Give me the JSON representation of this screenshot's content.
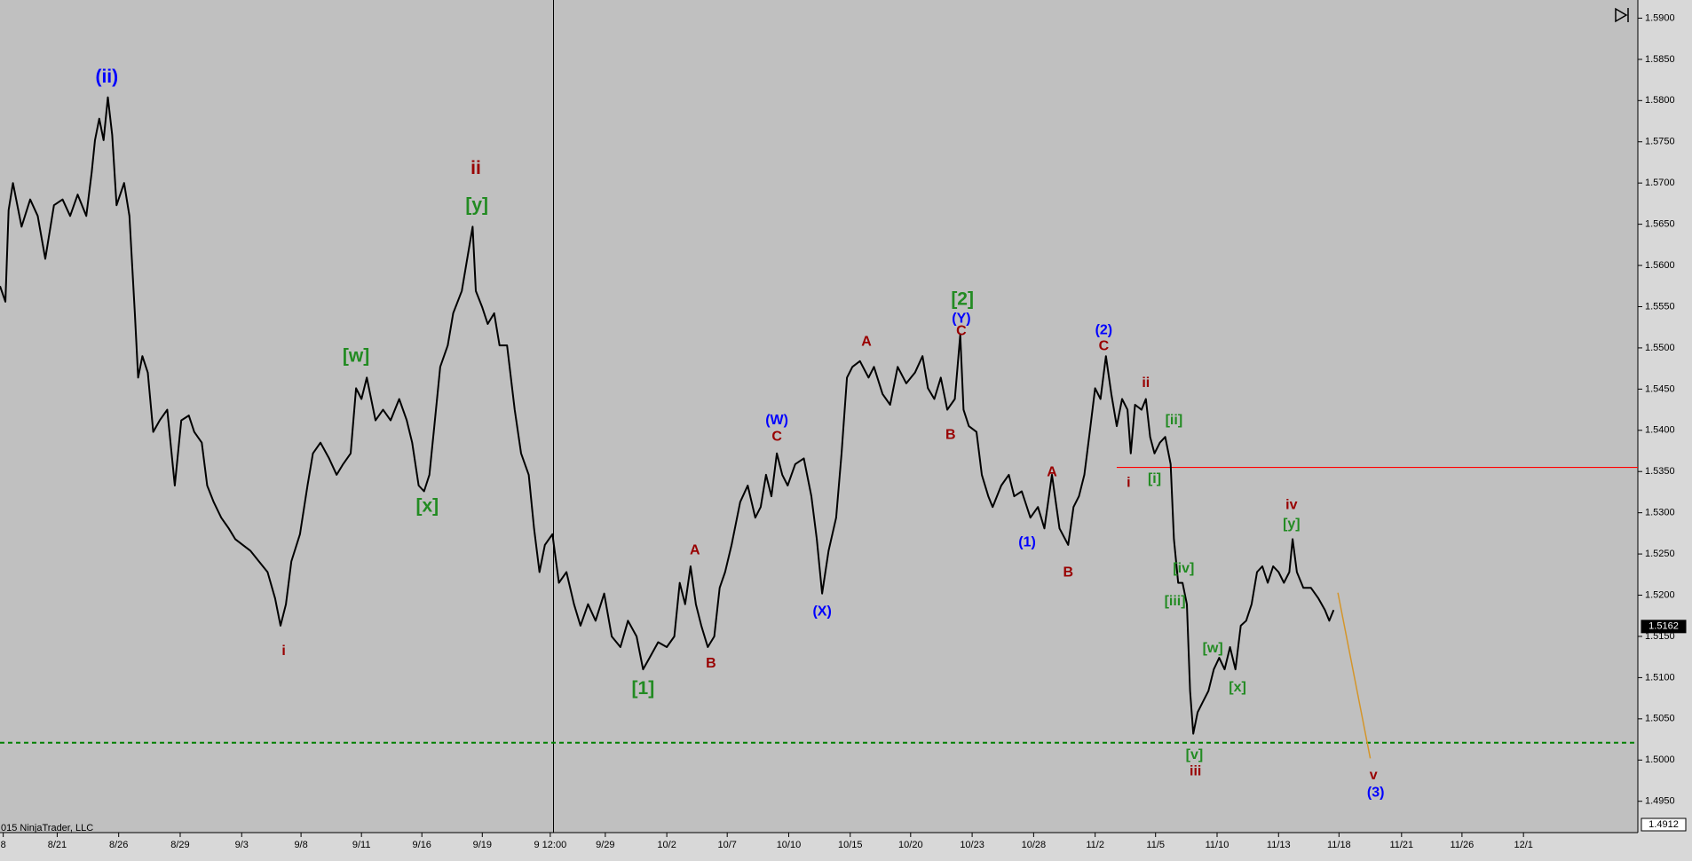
{
  "chart_data": {
    "type": "line",
    "color": "#000000",
    "xlim": [
      0,
      1518
    ],
    "ylim": [
      1.4912,
      1.5922
    ],
    "xticks": [
      {
        "value": 3,
        "label": "8"
      },
      {
        "value": 53,
        "label": "8/21"
      },
      {
        "value": 110,
        "label": "8/26"
      },
      {
        "value": 167,
        "label": "8/29"
      },
      {
        "value": 224,
        "label": "9/3"
      },
      {
        "value": 279,
        "label": "9/8"
      },
      {
        "value": 335,
        "label": "9/11"
      },
      {
        "value": 391,
        "label": "9/16"
      },
      {
        "value": 447,
        "label": "9/19"
      },
      {
        "value": 510,
        "label": "9 12:00"
      },
      {
        "value": 561,
        "label": "9/29"
      },
      {
        "value": 618,
        "label": "10/2"
      },
      {
        "value": 674,
        "label": "10/7"
      },
      {
        "value": 731,
        "label": "10/10"
      },
      {
        "value": 788,
        "label": "10/15"
      },
      {
        "value": 844,
        "label": "10/20"
      },
      {
        "value": 901,
        "label": "10/23"
      },
      {
        "value": 958,
        "label": "10/28"
      },
      {
        "value": 1015,
        "label": "11/2"
      },
      {
        "value": 1071,
        "label": "11/5"
      },
      {
        "value": 1128,
        "label": "11/10"
      },
      {
        "value": 1185,
        "label": "11/13"
      },
      {
        "value": 1241,
        "label": "11/18"
      },
      {
        "value": 1299,
        "label": "11/21"
      },
      {
        "value": 1355,
        "label": "11/26"
      },
      {
        "value": 1412,
        "label": "12/1"
      }
    ],
    "yticks": [
      {
        "value": 1.495,
        "label": "1.4950"
      },
      {
        "value": 1.5,
        "label": "1.5000"
      },
      {
        "value": 1.505,
        "label": "1.5050"
      },
      {
        "value": 1.51,
        "label": "1.5100"
      },
      {
        "value": 1.515,
        "label": "1.5150"
      },
      {
        "value": 1.52,
        "label": "1.5200"
      },
      {
        "value": 1.525,
        "label": "1.5250"
      },
      {
        "value": 1.53,
        "label": "1.5300"
      },
      {
        "value": 1.535,
        "label": "1.5350"
      },
      {
        "value": 1.54,
        "label": "1.5400"
      },
      {
        "value": 1.545,
        "label": "1.5450"
      },
      {
        "value": 1.55,
        "label": "1.5500"
      },
      {
        "value": 1.555,
        "label": "1.5550"
      },
      {
        "value": 1.56,
        "label": "1.5600"
      },
      {
        "value": 1.565,
        "label": "1.5650"
      },
      {
        "value": 1.57,
        "label": "1.5700"
      },
      {
        "value": 1.575,
        "label": "1.5750"
      },
      {
        "value": 1.58,
        "label": "1.5800"
      },
      {
        "value": 1.585,
        "label": "1.5850"
      },
      {
        "value": 1.59,
        "label": "1.5900"
      }
    ],
    "x": [
      0,
      5,
      8,
      12,
      20,
      28,
      35,
      42,
      50,
      58,
      65,
      72,
      80,
      85,
      88,
      92,
      96,
      100,
      104,
      108,
      115,
      120,
      125,
      128,
      132,
      137,
      142,
      148,
      155,
      162,
      168,
      175,
      180,
      187,
      192,
      198,
      205,
      212,
      218,
      225,
      232,
      240,
      248,
      255,
      260,
      265,
      270,
      278,
      285,
      290,
      297,
      305,
      312,
      318,
      325,
      330,
      335,
      340,
      348,
      355,
      362,
      370,
      377,
      382,
      388,
      393,
      398,
      402,
      408,
      415,
      420,
      428,
      433,
      438,
      441,
      447,
      452,
      458,
      463,
      470,
      477,
      483,
      490,
      495,
      500,
      505,
      512,
      518,
      525,
      532,
      538,
      545,
      552,
      560,
      567,
      575,
      582,
      590,
      596,
      602,
      610,
      618,
      625,
      630,
      635,
      640,
      645,
      650,
      656,
      662,
      667,
      672,
      678,
      686,
      693,
      700,
      705,
      710,
      715,
      720,
      725,
      730,
      737,
      745,
      752,
      757,
      762,
      768,
      775,
      780,
      785,
      790,
      797,
      805,
      810,
      818,
      825,
      832,
      840,
      848,
      855,
      860,
      866,
      872,
      878,
      885,
      890,
      893,
      898,
      905,
      910,
      916,
      920,
      928,
      935,
      940,
      947,
      955,
      962,
      968,
      975,
      982,
      990,
      995,
      1000,
      1005,
      1010,
      1015,
      1020,
      1025,
      1030,
      1035,
      1040,
      1045,
      1048,
      1052,
      1058,
      1062,
      1066,
      1070,
      1075,
      1080,
      1085,
      1088,
      1092,
      1096,
      1100,
      1103,
      1106,
      1110,
      1115,
      1120,
      1125,
      1130,
      1135,
      1140,
      1145,
      1150,
      1155,
      1160,
      1165,
      1170,
      1175,
      1180,
      1185,
      1190,
      1195,
      1198,
      1202,
      1208,
      1215,
      1222,
      1228,
      1232,
      1236
    ],
    "values": [
      1.5575,
      1.5556,
      1.5667,
      1.57,
      1.5647,
      1.568,
      1.566,
      1.5608,
      1.5673,
      1.568,
      1.566,
      1.5686,
      1.566,
      1.5713,
      1.5752,
      1.5778,
      1.5752,
      1.5804,
      1.5758,
      1.5673,
      1.57,
      1.566,
      1.5542,
      1.5464,
      1.549,
      1.547,
      1.5398,
      1.5412,
      1.5425,
      1.5333,
      1.5412,
      1.5418,
      1.5398,
      1.5385,
      1.5333,
      1.5313,
      1.5294,
      1.5281,
      1.5268,
      1.5261,
      1.5254,
      1.5241,
      1.5228,
      1.5196,
      1.5163,
      1.5189,
      1.5241,
      1.5274,
      1.5333,
      1.5372,
      1.5385,
      1.5366,
      1.5346,
      1.5359,
      1.5372,
      1.5451,
      1.5438,
      1.5464,
      1.5412,
      1.5425,
      1.5412,
      1.5438,
      1.5412,
      1.5385,
      1.5333,
      1.5326,
      1.5346,
      1.5398,
      1.5477,
      1.5503,
      1.5542,
      1.5569,
      1.5608,
      1.5647,
      1.5569,
      1.5549,
      1.5529,
      1.5542,
      1.5503,
      1.5503,
      1.5425,
      1.5372,
      1.5346,
      1.5281,
      1.5228,
      1.5261,
      1.5274,
      1.5215,
      1.5228,
      1.5189,
      1.5163,
      1.5189,
      1.5169,
      1.5202,
      1.515,
      1.5137,
      1.5169,
      1.515,
      1.511,
      1.5124,
      1.5143,
      1.5137,
      1.515,
      1.5215,
      1.5189,
      1.5235,
      1.5189,
      1.5163,
      1.5137,
      1.515,
      1.5209,
      1.5228,
      1.5261,
      1.5313,
      1.5333,
      1.5294,
      1.5307,
      1.5346,
      1.532,
      1.5372,
      1.5346,
      1.5333,
      1.5359,
      1.5366,
      1.532,
      1.5268,
      1.5202,
      1.5254,
      1.5294,
      1.5372,
      1.5464,
      1.5477,
      1.5484,
      1.5464,
      1.5477,
      1.5444,
      1.5431,
      1.5477,
      1.5457,
      1.547,
      1.549,
      1.5451,
      1.5438,
      1.5464,
      1.5425,
      1.5438,
      1.5516,
      1.5425,
      1.5405,
      1.5398,
      1.5346,
      1.532,
      1.5307,
      1.5333,
      1.5346,
      1.532,
      1.5326,
      1.5294,
      1.5307,
      1.5281,
      1.5346,
      1.5281,
      1.5261,
      1.5307,
      1.532,
      1.5346,
      1.5398,
      1.5451,
      1.5438,
      1.549,
      1.5444,
      1.5405,
      1.5438,
      1.5425,
      1.5372,
      1.5431,
      1.5425,
      1.5438,
      1.5392,
      1.5372,
      1.5385,
      1.5392,
      1.5359,
      1.5268,
      1.5215,
      1.5215,
      1.5189,
      1.5084,
      1.5032,
      1.5058,
      1.5071,
      1.5084,
      1.511,
      1.5124,
      1.511,
      1.5137,
      1.511,
      1.5163,
      1.5169,
      1.5189,
      1.5228,
      1.5235,
      1.5215,
      1.5235,
      1.5228,
      1.5215,
      1.5228,
      1.5268,
      1.5228,
      1.5209,
      1.5209,
      1.5196,
      1.5182,
      1.5169,
      1.5182
    ],
    "annotations": [
      {
        "text": "(ii)",
        "color": "#0000ff",
        "x": 99,
        "y": 1.5828
      },
      {
        "text": "ii",
        "color": "#990000",
        "x": 441,
        "y": 1.5717
      },
      {
        "text": "[y]",
        "color": "#228b22",
        "x": 442,
        "y": 1.5672
      },
      {
        "text": "[w]",
        "color": "#228b22",
        "x": 330,
        "y": 1.5489
      },
      {
        "text": "[x]",
        "color": "#228b22",
        "x": 396,
        "y": 1.5307
      },
      {
        "text": "i",
        "color": "#990000",
        "x": 263,
        "y": 1.5132
      },
      {
        "text": "[1]",
        "color": "#228b22",
        "x": 596,
        "y": 1.5086
      },
      {
        "text": "A",
        "color": "#990000",
        "x": 644,
        "y": 1.5254
      },
      {
        "text": "B",
        "color": "#990000",
        "x": 659,
        "y": 1.5117
      },
      {
        "text": "(W)",
        "color": "#0000ff",
        "x": 720,
        "y": 1.5412
      },
      {
        "text": "C",
        "color": "#990000",
        "x": 720,
        "y": 1.5392
      },
      {
        "text": "(X)",
        "color": "#0000ff",
        "x": 762,
        "y": 1.518
      },
      {
        "text": "A",
        "color": "#990000",
        "x": 803,
        "y": 1.5507
      },
      {
        "text": "[2]",
        "color": "#228b22",
        "x": 892,
        "y": 1.5558
      },
      {
        "text": "(Y)",
        "color": "#0000ff",
        "x": 891,
        "y": 1.5535
      },
      {
        "text": "C",
        "color": "#990000",
        "x": 891,
        "y": 1.552
      },
      {
        "text": "B",
        "color": "#990000",
        "x": 881,
        "y": 1.5394
      },
      {
        "text": "(1)",
        "color": "#0000ff",
        "x": 952,
        "y": 1.5264
      },
      {
        "text": "A",
        "color": "#990000",
        "x": 975,
        "y": 1.5349
      },
      {
        "text": "B",
        "color": "#990000",
        "x": 990,
        "y": 1.5227
      },
      {
        "text": "(2)",
        "color": "#0000ff",
        "x": 1023,
        "y": 1.5521
      },
      {
        "text": "C",
        "color": "#990000",
        "x": 1023,
        "y": 1.5502
      },
      {
        "text": "ii",
        "color": "#990000",
        "x": 1062,
        "y": 1.5457
      },
      {
        "text": "[ii]",
        "color": "#228b22",
        "x": 1088,
        "y": 1.5412
      },
      {
        "text": "i",
        "color": "#990000",
        "x": 1046,
        "y": 1.5336
      },
      {
        "text": "[i]",
        "color": "#228b22",
        "x": 1070,
        "y": 1.5341
      },
      {
        "text": "[iv]",
        "color": "#228b22",
        "x": 1097,
        "y": 1.5232
      },
      {
        "text": "[iii]",
        "color": "#228b22",
        "x": 1089,
        "y": 1.5192
      },
      {
        "text": "[w]",
        "color": "#228b22",
        "x": 1124,
        "y": 1.5135
      },
      {
        "text": "[x]",
        "color": "#228b22",
        "x": 1147,
        "y": 1.5088
      },
      {
        "text": "[v]",
        "color": "#228b22",
        "x": 1107,
        "y": 1.5006
      },
      {
        "text": "iii",
        "color": "#990000",
        "x": 1108,
        "y": 1.4986
      },
      {
        "text": "iv",
        "color": "#990000",
        "x": 1197,
        "y": 1.5309
      },
      {
        "text": "[y]",
        "color": "#228b22",
        "x": 1197,
        "y": 1.5286
      },
      {
        "text": "v",
        "color": "#990000",
        "x": 1273,
        "y": 1.4981
      },
      {
        "text": "(3)",
        "color": "#0000ff",
        "x": 1275,
        "y": 1.496
      }
    ],
    "hlines": [
      {
        "y": 1.5355,
        "color": "#ff0000",
        "style": "solid"
      },
      {
        "y": 1.5021,
        "color": "#008000",
        "style": "dashed"
      }
    ],
    "vlines": [
      {
        "x": 513,
        "color": "#000000"
      }
    ],
    "projection": {
      "x": [
        1240,
        1270
      ],
      "y": [
        1.5203,
        1.5002
      ],
      "color": "#d4952a"
    },
    "price_labels": [
      {
        "value": 1.5162,
        "label": "1.5162"
      },
      {
        "value": 1.4912,
        "label": "1.4912"
      }
    ],
    "footer": "015 NinjaTrader, LLC"
  }
}
